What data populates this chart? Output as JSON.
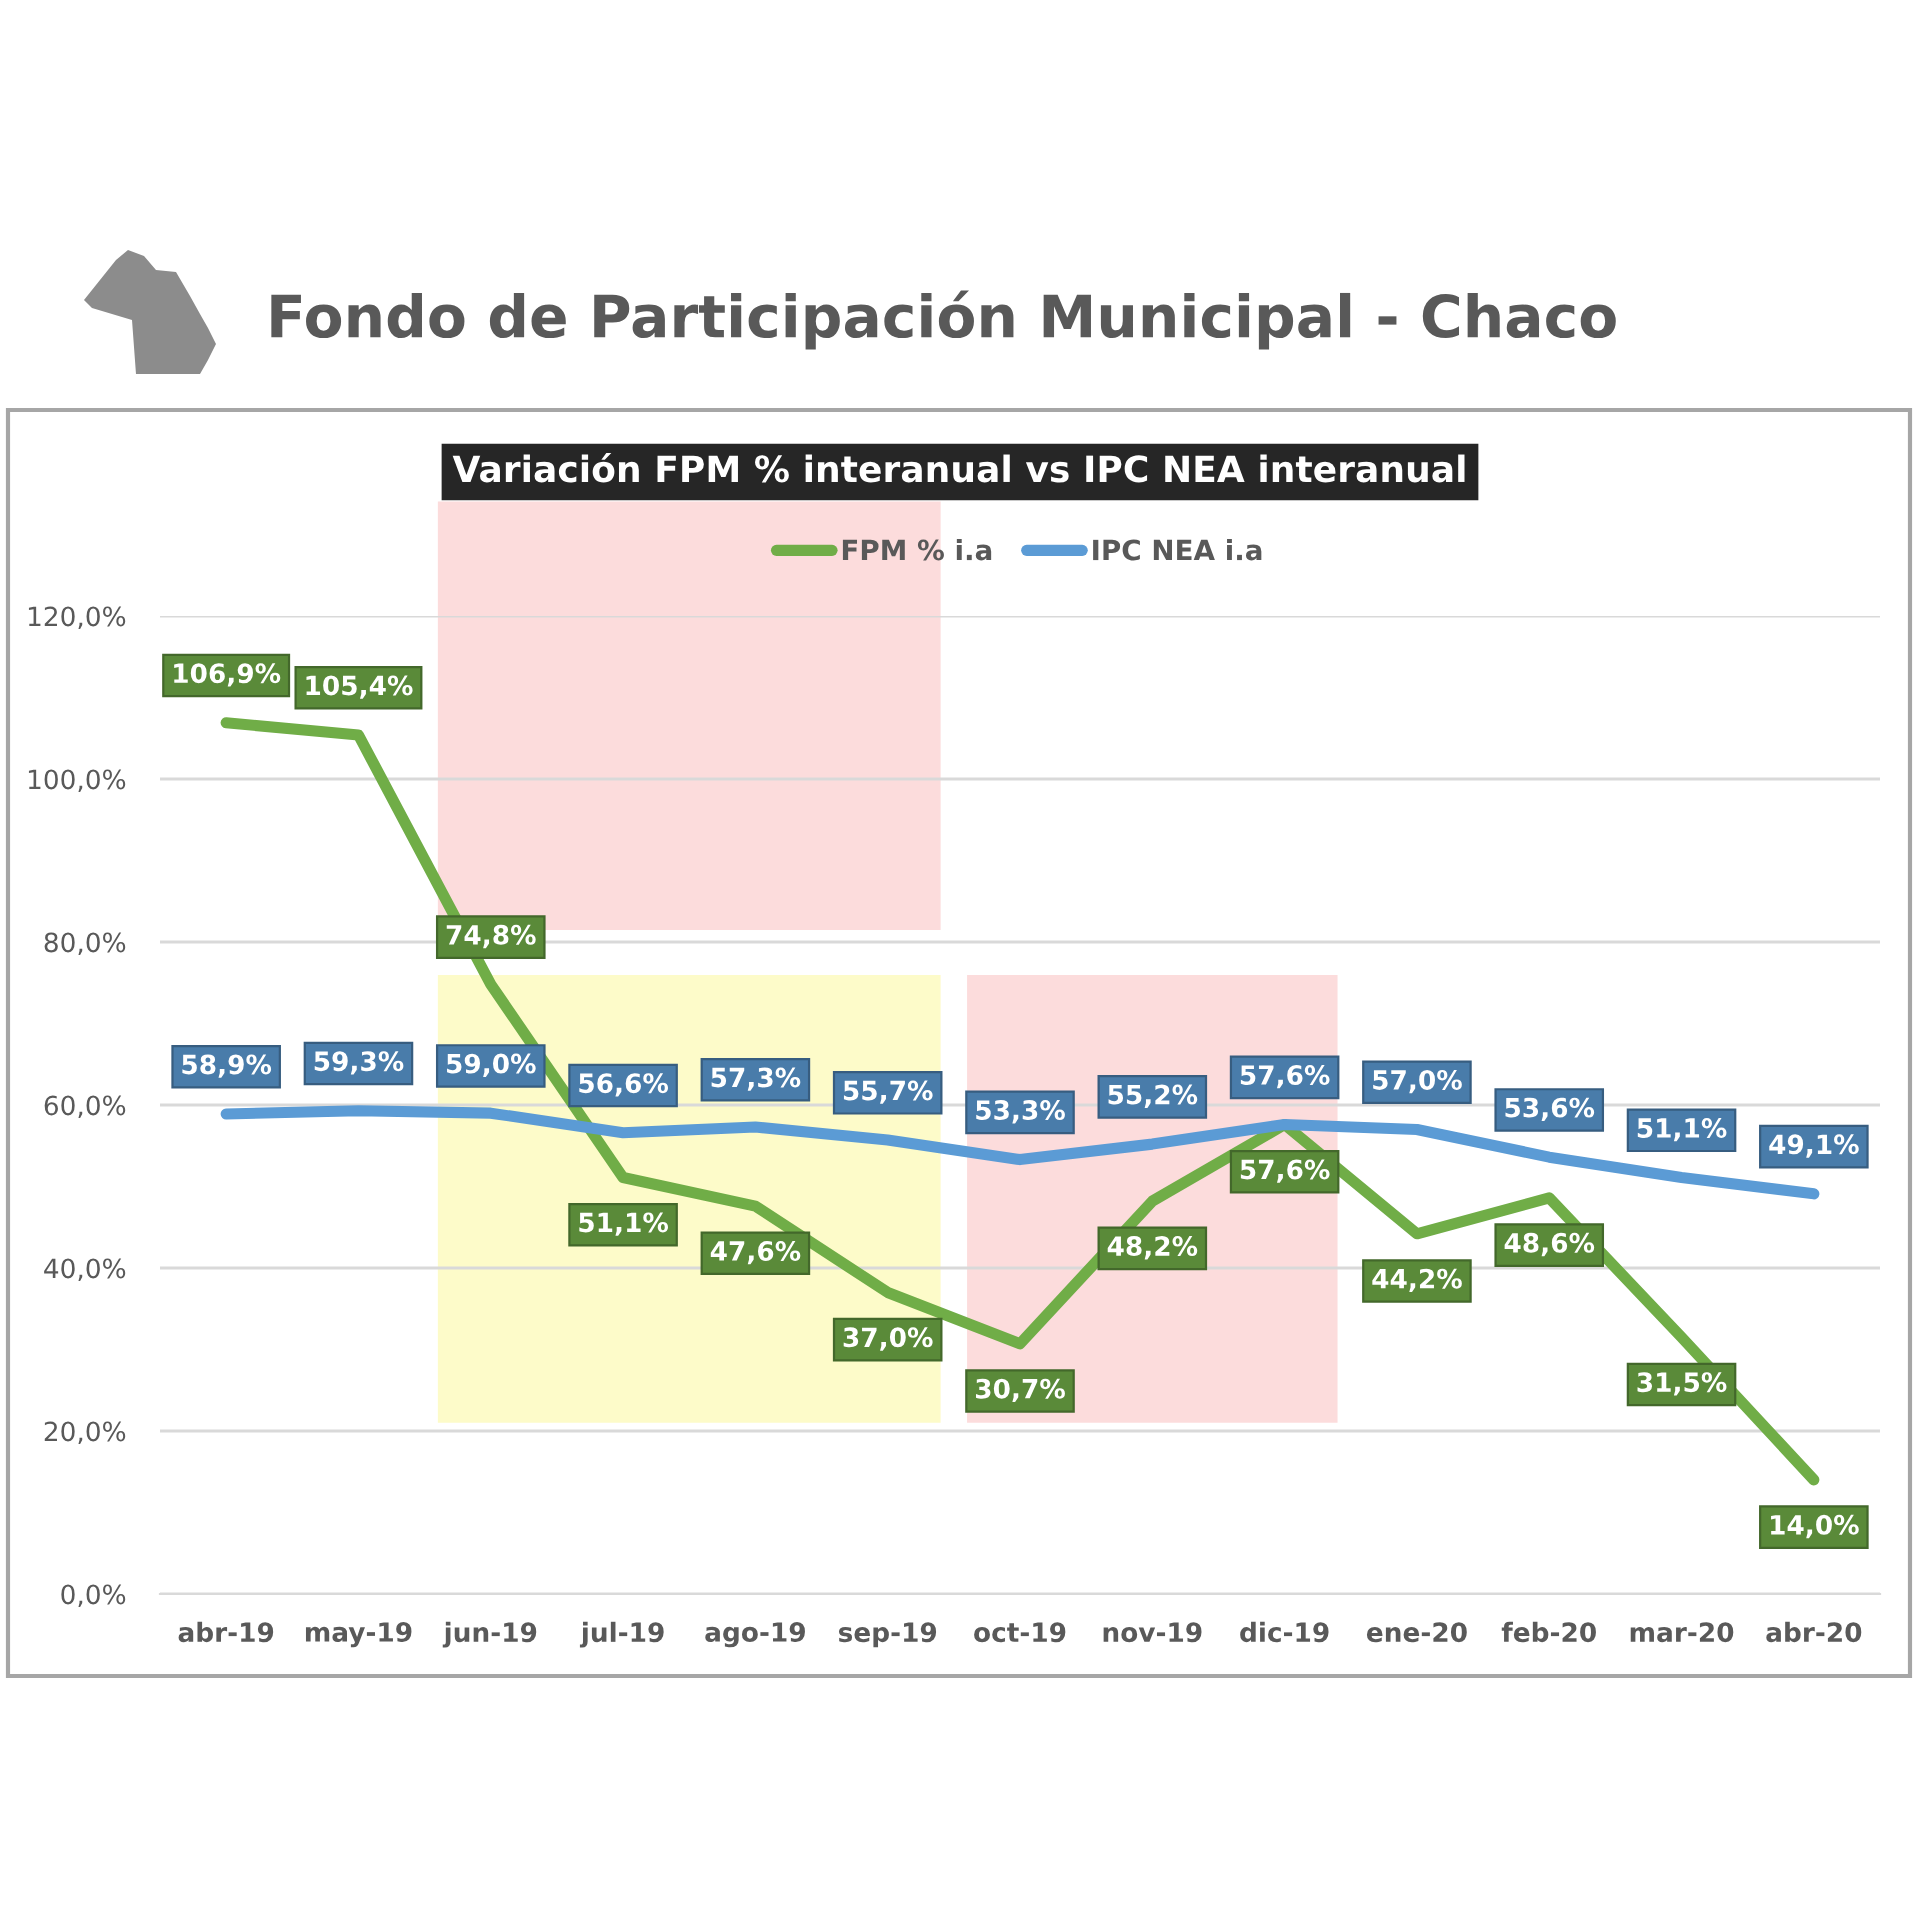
{
  "chart_data": {
    "type": "line",
    "title": "Fondo de Participación Municipal - Chaco",
    "subtitle": "Variación FPM % interanual vs IPC NEA interanual",
    "categories": [
      "abr-19",
      "may-19",
      "jun-19",
      "jul-19",
      "ago-19",
      "sep-19",
      "oct-19",
      "nov-19",
      "dic-19",
      "ene-20",
      "feb-20",
      "mar-20",
      "abr-20"
    ],
    "series": [
      {
        "name": "FPM % i.a",
        "color": "#70ad47",
        "values": [
          106.9,
          105.4,
          74.8,
          51.1,
          47.6,
          37.0,
          30.7,
          48.2,
          57.6,
          44.2,
          48.6,
          31.5,
          14.0
        ],
        "value_labels": [
          "106,9%",
          "105,4%",
          "74,8%",
          "51,1%",
          "47,6%",
          "37,0%",
          "30,7%",
          "48,2%",
          "57,6%",
          "44,2%",
          "48,6%",
          "31,5%",
          "14,0%"
        ]
      },
      {
        "name": "IPC NEA i.a",
        "color": "#5b9bd5",
        "values": [
          58.9,
          59.3,
          59.0,
          56.6,
          57.3,
          55.7,
          53.3,
          55.2,
          57.6,
          57.0,
          53.6,
          51.1,
          49.1
        ],
        "value_labels": [
          "58,9%",
          "59,3%",
          "59,0%",
          "56,6%",
          "57,3%",
          "55,7%",
          "53,3%",
          "55,2%",
          "57,6%",
          "57,0%",
          "53,6%",
          "51,1%",
          "49,1%"
        ]
      }
    ],
    "ylim": [
      0,
      120
    ],
    "yticks": [
      {
        "value": 0,
        "label": "0,0%"
      },
      {
        "value": 20,
        "label": "20,0%"
      },
      {
        "value": 40,
        "label": "40,0%"
      },
      {
        "value": 60,
        "label": "60,0%"
      },
      {
        "value": 80,
        "label": "80,0%"
      },
      {
        "value": 100,
        "label": "100,0%"
      },
      {
        "value": 120,
        "label": "120,0%"
      }
    ],
    "bands": [
      {
        "axis": "x",
        "from": "jun-19",
        "to": "sep-19",
        "color": "#fcdcdc"
      },
      {
        "axis": "x",
        "from": "jun-19",
        "to": "sep-19",
        "color": "#fdfbc9"
      },
      {
        "axis": "x",
        "from": "oct-19",
        "to": "dic-19",
        "color": "#fcdcdc"
      }
    ],
    "grid": "y",
    "legend": "top"
  }
}
